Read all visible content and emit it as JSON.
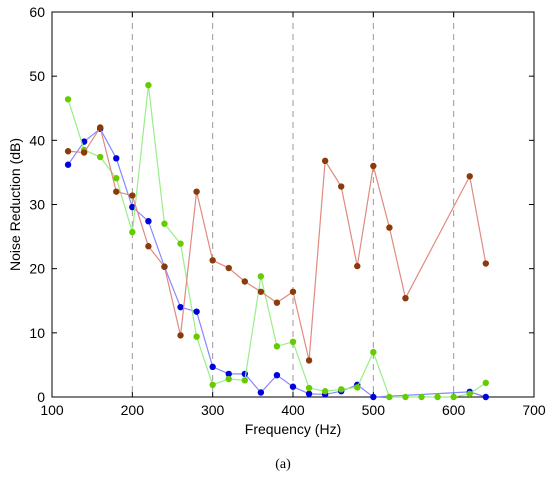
{
  "chart_data": {
    "type": "line",
    "xlabel": "Frequency (Hz)",
    "ylabel": "Noise Reduction (dB)",
    "caption": "(a)",
    "xlim": [
      100,
      700
    ],
    "ylim": [
      0,
      60
    ],
    "xticks": [
      100,
      200,
      300,
      400,
      500,
      600,
      700
    ],
    "yticks": [
      0,
      10,
      20,
      30,
      40,
      50,
      60
    ],
    "x_tick_labels": [
      "100",
      "200",
      "300",
      "400",
      "500",
      "600",
      "700"
    ],
    "y_tick_labels": [
      "0",
      "10",
      "20",
      "30",
      "40",
      "50",
      "60"
    ],
    "vertical_dashed_gridlines_at": [
      200,
      300,
      400,
      500,
      600
    ],
    "series": [
      {
        "color": "#0000dd",
        "line_color": "#8888ff",
        "x": [
          120,
          140,
          160,
          180,
          200,
          220,
          240,
          260,
          280,
          300,
          320,
          340,
          360,
          380,
          400,
          420,
          440,
          460,
          480,
          500,
          620,
          640
        ],
        "y": [
          36.2,
          39.8,
          41.8,
          37.2,
          29.6,
          27.4,
          20.3,
          14.0,
          13.3,
          4.7,
          3.6,
          3.6,
          0.7,
          3.4,
          1.6,
          0.5,
          0.4,
          0.9,
          1.9,
          0.0,
          0.8,
          0.0
        ]
      },
      {
        "color": "#66cc00",
        "line_color": "#99ee88",
        "x": [
          120,
          140,
          160,
          180,
          200,
          220,
          240,
          260,
          280,
          300,
          320,
          340,
          360,
          380,
          400,
          420,
          440,
          460,
          480,
          500,
          520,
          540,
          560,
          580,
          600,
          620,
          640
        ],
        "y": [
          46.4,
          38.5,
          37.4,
          34.1,
          25.7,
          48.6,
          27.0,
          23.9,
          9.4,
          1.9,
          2.8,
          2.6,
          18.8,
          7.9,
          8.6,
          1.4,
          0.9,
          1.2,
          1.5,
          7.0,
          0.0,
          0.0,
          0.0,
          0.0,
          0.0,
          0.5,
          2.2
        ]
      },
      {
        "color": "#8b3a0a",
        "line_color": "#e08a80",
        "x": [
          120,
          140,
          160,
          180,
          200,
          220,
          240,
          260,
          280,
          300,
          320,
          340,
          360,
          380,
          400,
          420,
          440,
          460,
          480,
          500,
          520,
          540,
          620,
          640
        ],
        "y": [
          38.3,
          38.1,
          42.0,
          32.0,
          31.4,
          23.5,
          20.3,
          9.6,
          32.0,
          21.3,
          20.1,
          18.0,
          16.4,
          14.7,
          16.4,
          5.7,
          36.8,
          32.8,
          20.4,
          36.0,
          26.4,
          15.4,
          34.4,
          20.8
        ]
      }
    ]
  }
}
